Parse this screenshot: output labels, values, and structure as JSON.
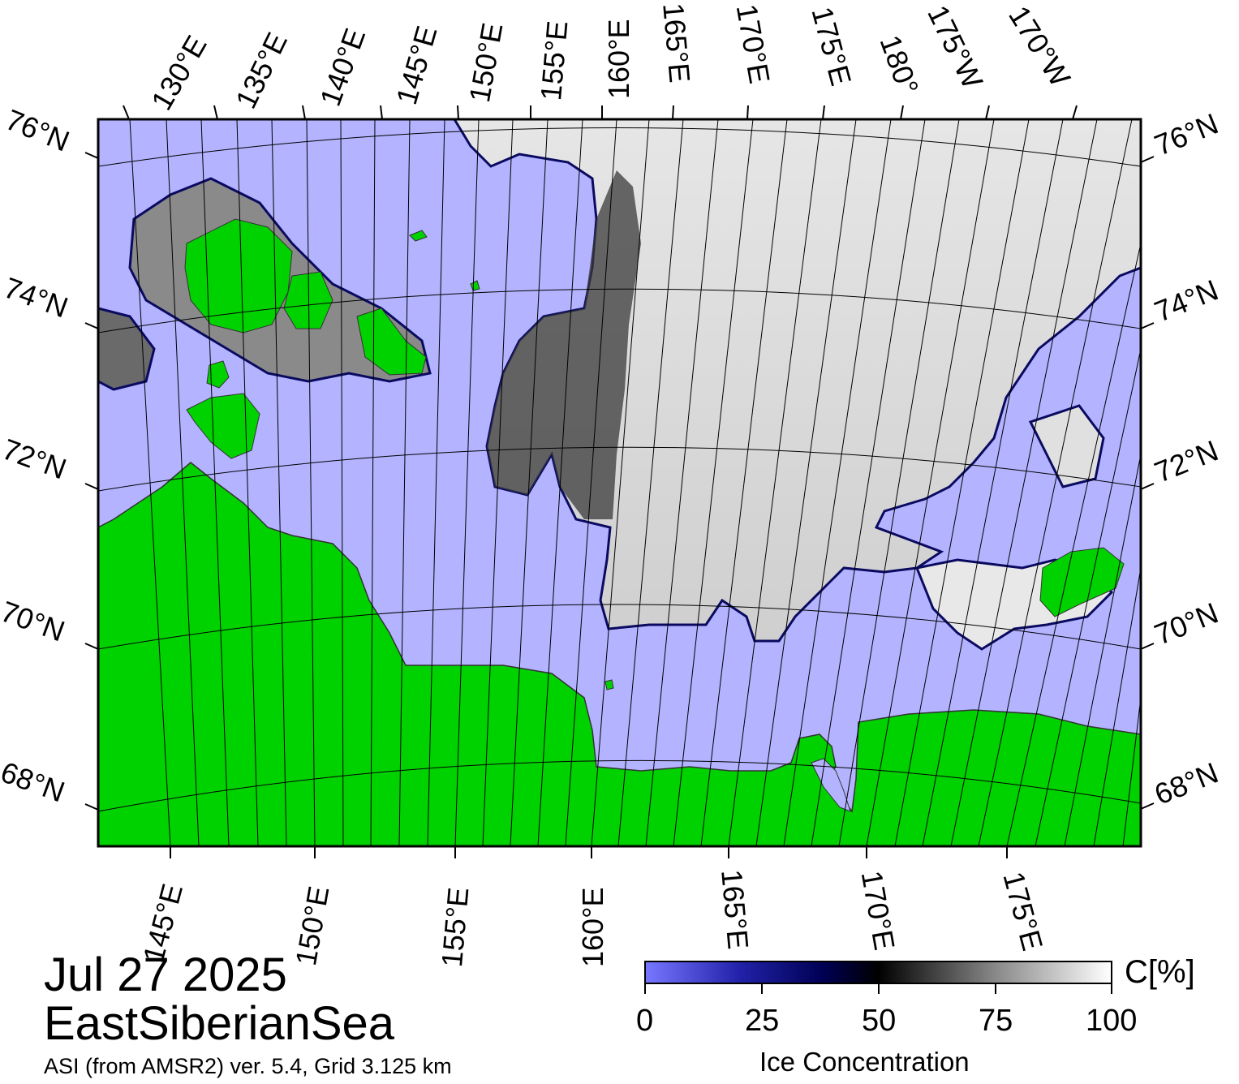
{
  "map": {
    "date": "Jul 27 2025",
    "region": "EastSiberianSea",
    "source": "ASI (from AMSR2) ver. 5.4,  Grid 3.125 km"
  },
  "lat_labels_left": [
    "76°N",
    "74°N",
    "72°N",
    "70°N",
    "68°N"
  ],
  "lat_labels_right": [
    "76°N",
    "74°N",
    "72°N",
    "70°N",
    "68°N"
  ],
  "lon_labels_top": [
    "130°E",
    "135°E",
    "140°E",
    "145°E",
    "150°E",
    "155°E",
    "160°E",
    "165°E",
    "170°E",
    "175°E",
    "180°",
    "175°W",
    "170°W"
  ],
  "lon_labels_bottom": [
    "145°E",
    "150°E",
    "155°E",
    "160°E",
    "165°E",
    "170°E",
    "175°E"
  ],
  "colorbar": {
    "title": "Ice Concentration",
    "unit": "C[%]",
    "ticks": [
      "0",
      "25",
      "50",
      "75",
      "100"
    ],
    "min": 0,
    "max": 100
  },
  "colors": {
    "ocean": "#b3b3ff",
    "land": "#00d200",
    "ice_low": "#6666ee",
    "ice_mid": "#000033",
    "ice_high": "#ffffff",
    "frame": "#000000"
  }
}
